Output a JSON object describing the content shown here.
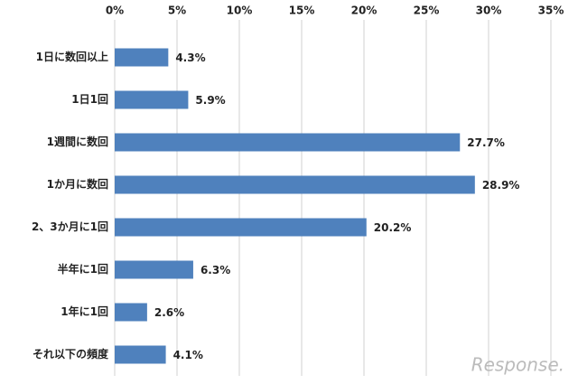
{
  "chart_data": {
    "type": "bar",
    "orientation": "horizontal",
    "categories": [
      "1日に数回以上",
      "1日1回",
      "1週間に数回",
      "1か月に数回",
      "2、3か月に1回",
      "半年に1回",
      "1年に1回",
      "それ以下の頻度"
    ],
    "values": [
      4.3,
      5.9,
      27.7,
      28.9,
      20.2,
      6.3,
      2.6,
      4.1
    ],
    "value_labels": [
      "4.3%",
      "5.9%",
      "27.7%",
      "28.9%",
      "20.2%",
      "6.3%",
      "2.6%",
      "4.1%"
    ],
    "color": "#4f81bd",
    "xlim": [
      0,
      35
    ],
    "xticks": [
      {
        "value": 0,
        "label": "0%"
      },
      {
        "value": 5,
        "label": "5%"
      },
      {
        "value": 10,
        "label": "10%"
      },
      {
        "value": 15,
        "label": "15%"
      },
      {
        "value": 20,
        "label": "20%"
      },
      {
        "value": 25,
        "label": "25%"
      },
      {
        "value": 30,
        "label": "30%"
      },
      {
        "value": 35,
        "label": "35%"
      }
    ],
    "grid": true,
    "watermark": "Response."
  }
}
